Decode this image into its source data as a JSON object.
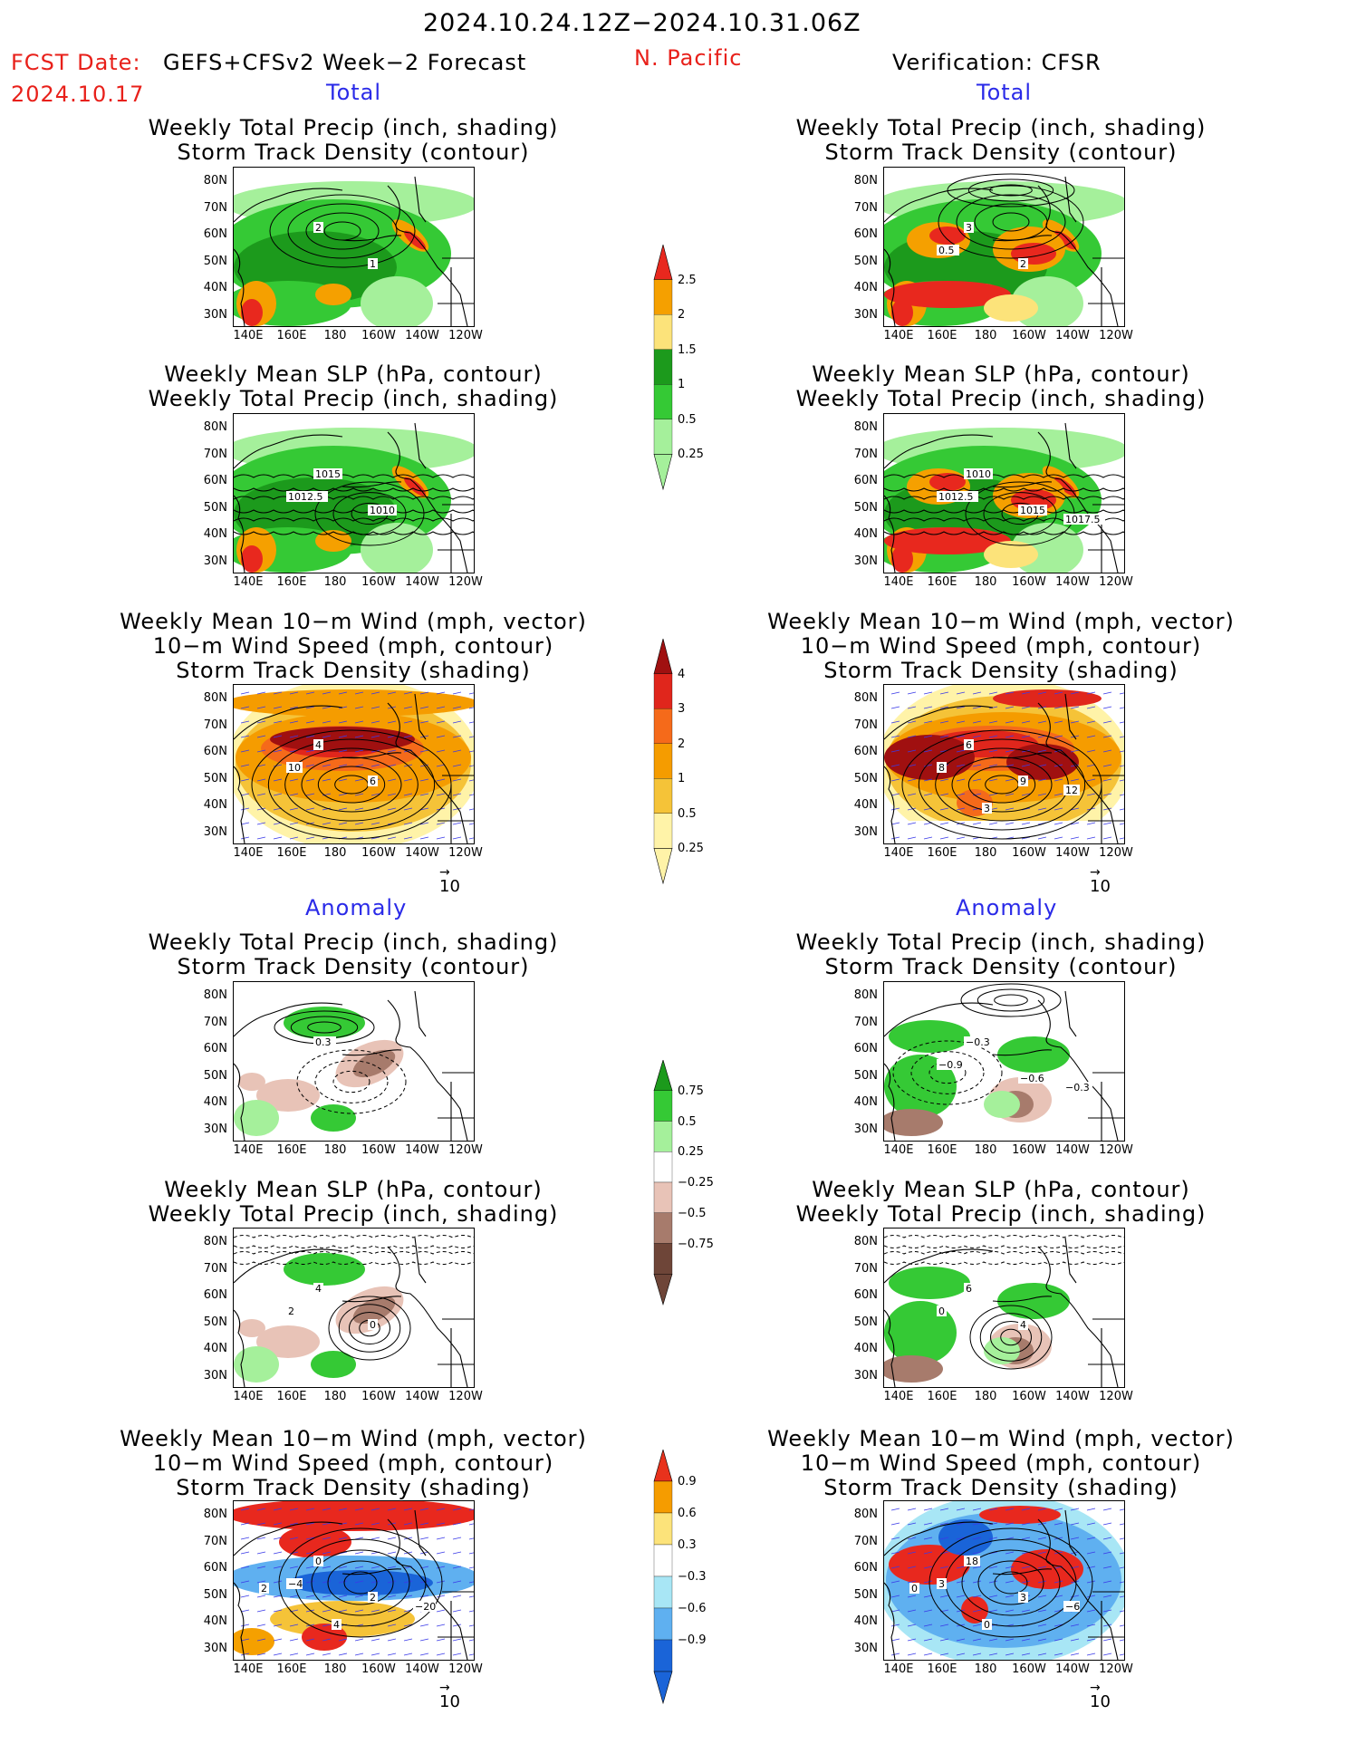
{
  "header": {
    "date_range": "2024.10.24.12Z−2024.10.31.06Z",
    "fcst_label": "FCST Date:",
    "model": "GEFS+CFSv2 Week−2 Forecast",
    "fcst_date": "2024.10.17",
    "region": "N. Pacific",
    "verification": "Verification: CFSR"
  },
  "sections": {
    "total": "Total",
    "anomaly": "Anomaly"
  },
  "titles": {
    "precip_storm": [
      "Weekly Total Precip (inch, shading)",
      "Storm Track Density (contour)"
    ],
    "slp_precip": [
      "Weekly Mean SLP (hPa, contour)",
      "Weekly Total Precip (inch, shading)"
    ],
    "wind_storm": [
      "Weekly Mean 10−m Wind (mph, vector)",
      "10−m Wind Speed (mph, contour)",
      "Storm Track Density (shading)"
    ]
  },
  "axes": {
    "lat_labels": [
      "80N",
      "70N",
      "60N",
      "50N",
      "40N",
      "30N"
    ],
    "lon_labels": [
      "140E",
      "160E",
      "180",
      "160W",
      "140W",
      "120W"
    ]
  },
  "vector_ref": "10",
  "colorbars": {
    "precip_total": {
      "labels": [
        "2.5",
        "2",
        "1.5",
        "1",
        "0.5",
        "0.25"
      ],
      "colors": [
        "#e8281e",
        "#f5a000",
        "#fce37a",
        "#1c9a1c",
        "#35c935",
        "#a5f09b"
      ]
    },
    "storm_total": {
      "labels": [
        "4",
        "3",
        "2",
        "1",
        "0.5",
        "0.25"
      ],
      "colors": [
        "#a01010",
        "#e0261c",
        "#f56a1a",
        "#f59c00",
        "#f5c338",
        "#fff3a8"
      ]
    },
    "precip_anom": {
      "labels": [
        "0.75",
        "0.5",
        "0.25",
        "−0.25",
        "−0.5",
        "−0.75"
      ],
      "colors": [
        "#1c9a1c",
        "#35c935",
        "#a5f09b",
        "#ffffff",
        "#e8c3b7",
        "#a77b6c",
        "#6e4538"
      ]
    },
    "storm_anom": {
      "labels": [
        "0.9",
        "0.6",
        "0.3",
        "−0.3",
        "−0.6",
        "−0.9"
      ],
      "colors": [
        "#e8321c",
        "#f59c00",
        "#fce37a",
        "#ffffff",
        "#a8e6f5",
        "#5fb0f0",
        "#1a64d8"
      ]
    }
  },
  "contour_labels": {
    "fc_total_precip": [
      "2",
      "1"
    ],
    "obs_total_precip": [
      "3",
      "2",
      "0.5"
    ],
    "fc_total_slp": [
      "1015",
      "1010",
      "1012.5"
    ],
    "obs_total_slp": [
      "1010",
      "1015",
      "1012.5",
      "1017.5"
    ],
    "fc_total_wind": [
      "4",
      "6",
      "10"
    ],
    "obs_total_wind": [
      "6",
      "9",
      "8",
      "12",
      "3"
    ],
    "fc_anom_precip": [
      "0.3"
    ],
    "obs_anom_precip": [
      "−0.3",
      "−0.6",
      "−0.9",
      "−0.3"
    ],
    "fc_anom_slp": [
      "4",
      "0",
      "2"
    ],
    "obs_anom_slp": [
      "6",
      "4",
      "0"
    ],
    "fc_anom_wind": [
      "0",
      "2",
      "−4",
      "−20",
      "4",
      "2"
    ],
    "obs_anom_wind": [
      "18",
      "3",
      "3",
      "−6",
      "0",
      "0"
    ]
  }
}
